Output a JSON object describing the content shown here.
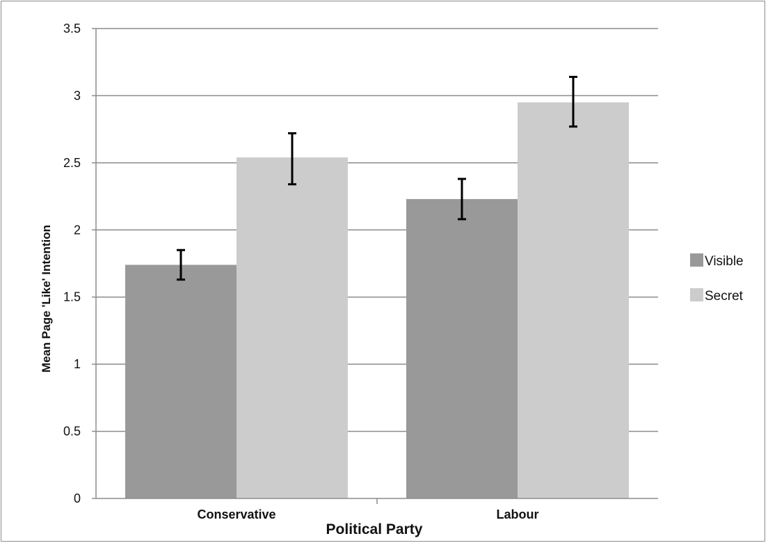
{
  "chart_data": {
    "type": "bar",
    "title": "",
    "xlabel": "Political Party",
    "ylabel": "Mean Page 'Like' Intention",
    "categories": [
      "Conservative",
      "Labour"
    ],
    "series": [
      {
        "name": "Visible",
        "color": "#999999",
        "values": [
          1.74,
          2.23
        ],
        "error_low": [
          1.63,
          2.08
        ],
        "error_high": [
          1.85,
          2.38
        ]
      },
      {
        "name": "Secret",
        "color": "#cccccc",
        "values": [
          2.54,
          2.95
        ],
        "error_low": [
          2.34,
          2.77
        ],
        "error_high": [
          2.72,
          3.14
        ]
      }
    ],
    "ylim": [
      0,
      3.5
    ],
    "yticks": [
      "0",
      "0.5",
      "1",
      "1.5",
      "2",
      "2.5",
      "3",
      "3.5"
    ],
    "grid": true,
    "legend_position": "right"
  }
}
